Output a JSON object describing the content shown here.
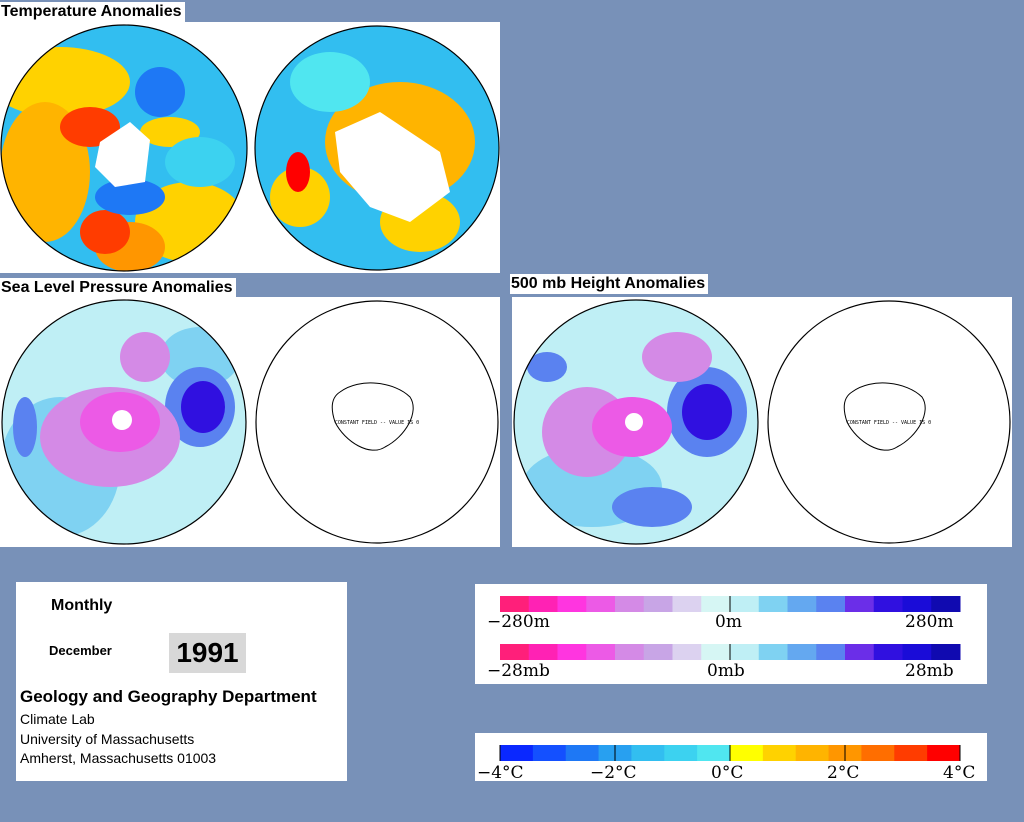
{
  "page": {
    "background": "#7891b8"
  },
  "panels": {
    "temperature": {
      "title": "Temperature Anomalies"
    },
    "slp": {
      "title": "Sea Level Pressure Anomalies",
      "constant_field_note": "CONSTANT FIELD -- VALUE IS 0"
    },
    "height500": {
      "title": "500 mb Height Anomalies",
      "constant_field_note": "CONSTANT FIELD -- VALUE IS 0"
    }
  },
  "info": {
    "period": "Monthly",
    "month": "December",
    "year": "1991",
    "department": "Geology and Geography Department",
    "lines": [
      "Climate Lab",
      "University of Massachusetts",
      "Amherst, Massachusetts 01003"
    ]
  },
  "legends": {
    "height_pressure": {
      "colors": [
        "#ff1f7a",
        "#ff22b4",
        "#ff35e0",
        "#ec5ae6",
        "#d48ae6",
        "#c8a5e6",
        "#dcd2f0",
        "#d6f6f4",
        "#bfeff5",
        "#7fd2f2",
        "#64a8f0",
        "#5a82f0",
        "#6b2ee8",
        "#3010e0",
        "#1a0cd8",
        "#100ab0"
      ],
      "height_labels": [
        "−280m",
        "0m",
        "280m"
      ],
      "pressure_labels": [
        "−28mb",
        "0mb",
        "28mb"
      ]
    },
    "temperature": {
      "colors": [
        "#0a28ff",
        "#1450ff",
        "#1e78f5",
        "#28a0f0",
        "#32bef0",
        "#3cd2f0",
        "#50e6f0",
        "#ffff00",
        "#ffd200",
        "#ffb400",
        "#ff9600",
        "#ff6e00",
        "#ff3c00",
        "#ff0000"
      ],
      "labels": [
        "−4°C",
        "−2°C",
        "0°C",
        "2°C",
        "4°C"
      ]
    }
  }
}
